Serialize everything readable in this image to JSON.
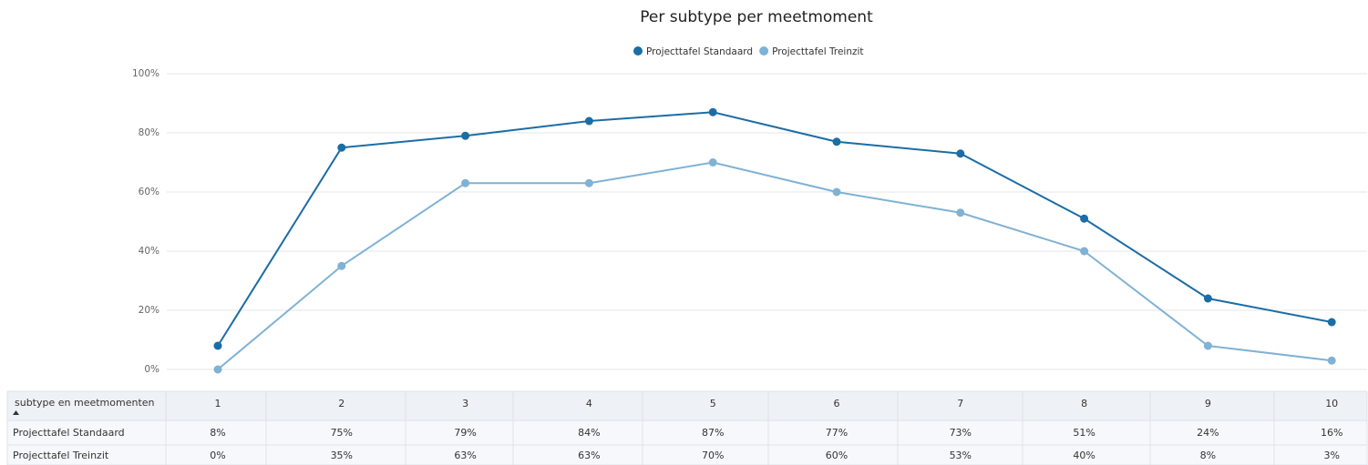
{
  "chart_data": {
    "type": "line",
    "title": "Per subtype per meetmoment",
    "categories": [
      "1",
      "2",
      "3",
      "4",
      "5",
      "6",
      "7",
      "8",
      "9",
      "10"
    ],
    "series": [
      {
        "name": "Projecttafel Standaard",
        "color": "#1b6da6",
        "values": [
          8,
          75,
          79,
          84,
          87,
          77,
          73,
          51,
          24,
          16
        ],
        "value_labels": [
          "8%",
          "75%",
          "79%",
          "84%",
          "87%",
          "77%",
          "73%",
          "51%",
          "24%",
          "16%"
        ]
      },
      {
        "name": "Projecttafel Treinzit",
        "color": "#7fb2d4",
        "values": [
          0,
          35,
          63,
          63,
          70,
          60,
          53,
          40,
          8,
          3
        ],
        "value_labels": [
          "0%",
          "35%",
          "63%",
          "63%",
          "70%",
          "60%",
          "53%",
          "40%",
          "8%",
          "3%"
        ]
      }
    ],
    "ylim": [
      0,
      100
    ],
    "yticks": [
      {
        "value": 0,
        "label": "0%"
      },
      {
        "value": 20,
        "label": "20%"
      },
      {
        "value": 40,
        "label": "40%"
      },
      {
        "value": 60,
        "label": "60%"
      },
      {
        "value": 80,
        "label": "80%"
      },
      {
        "value": 100,
        "label": "100%"
      }
    ],
    "grid": true,
    "legend": "top",
    "table_header": "subtype en meetmomenten"
  }
}
